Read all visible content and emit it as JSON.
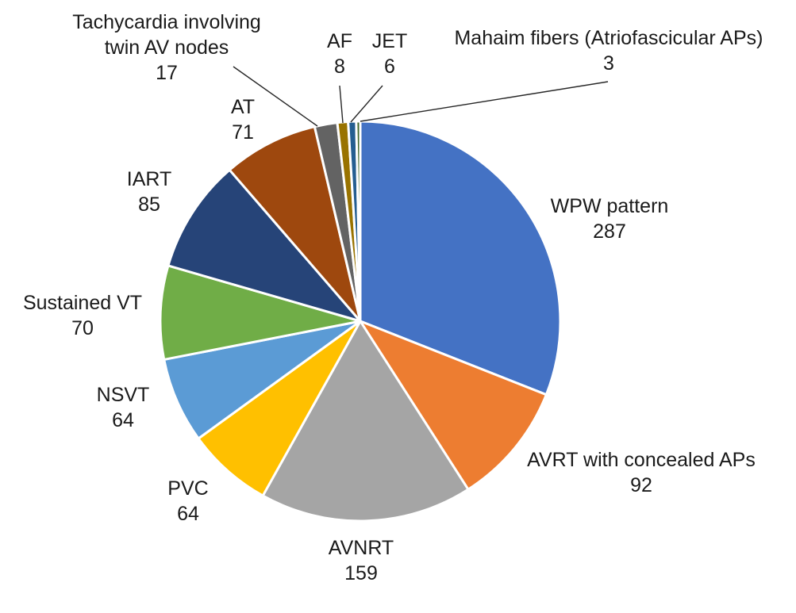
{
  "chart_data": {
    "type": "pie",
    "start_angle_deg": 0,
    "direction": "clockwise",
    "legend": "none",
    "slices": [
      {
        "label": "WPW pattern",
        "value": 287,
        "color": "#4472C4"
      },
      {
        "label": "AVRT with concealed APs",
        "value": 92,
        "color": "#ED7D31"
      },
      {
        "label": "AVNRT",
        "value": 159,
        "color": "#A5A5A5"
      },
      {
        "label": "PVC",
        "value": 64,
        "color": "#FFC000"
      },
      {
        "label": "NSVT",
        "value": 64,
        "color": "#5B9BD5"
      },
      {
        "label": "Sustained VT",
        "value": 70,
        "color": "#70AD47"
      },
      {
        "label": "IART",
        "value": 85,
        "color": "#264478"
      },
      {
        "label": "AT",
        "value": 71,
        "color": "#9E480E"
      },
      {
        "label": "Tachycardia involving twin AV nodes",
        "value": 17,
        "color": "#636363"
      },
      {
        "label": "AF",
        "value": 8,
        "color": "#997300"
      },
      {
        "label": "JET",
        "value": 6,
        "color": "#255E91"
      },
      {
        "label": "Mahaim fibers (Atriofascicular APs)",
        "value": 3,
        "color": "#43682B"
      }
    ]
  }
}
